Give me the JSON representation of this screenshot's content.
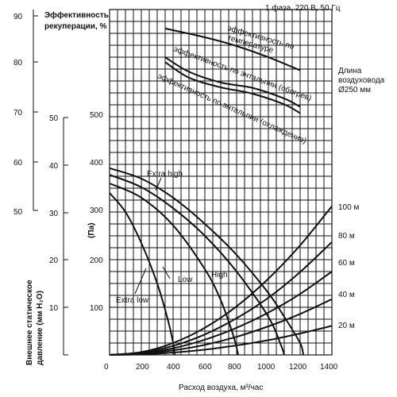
{
  "header": {
    "power_label": "1 фаза, 220 В, 50 Гц",
    "eff_axis_line1": "Эффективность",
    "eff_axis_line2": "рекуперации, %",
    "duct_line1": "Длина",
    "duct_line2": "воздуховода",
    "duct_line3": "Ø250 мм"
  },
  "axes": {
    "efficiency_ticks": [
      "90",
      "80",
      "70",
      "60",
      "50"
    ],
    "mmh2o_ticks": [
      "50",
      "40",
      "30",
      "20",
      "10"
    ],
    "pa_ticks": [
      "500",
      "400",
      "300",
      "200",
      "100"
    ],
    "pa_unit": "(Па)",
    "x_ticks": [
      "0",
      "200",
      "400",
      "600",
      "800",
      "1000",
      "1200",
      "1400"
    ],
    "xlabel": "Расход воздуха, м³/час",
    "ylabel_line1": "Внешнее статическое",
    "ylabel_line2": "давление (мм H₂O)"
  },
  "labels": {
    "eff_temp_line1": "эффективность по",
    "eff_temp_line2": "температуре",
    "eff_heat": "эффективность по энтальпии (обогрев)",
    "eff_cool": "эффективность по энтальпии (охлаждение)",
    "extra_high": "Extra high",
    "high": "High",
    "low": "Low",
    "extra_low": "Extra low",
    "duct_100": "100 м",
    "duct_80": "80 м",
    "duct_60": "60 м",
    "duct_40": "40 м",
    "duct_20": "20 м"
  },
  "chart_data": {
    "type": "line",
    "xlabel": "Расход воздуха, м³/час",
    "ylabel": "Внешнее статическое давление (Па)",
    "xlim": [
      0,
      1400
    ],
    "ylim": [
      0,
      500
    ],
    "efficiency_ylim": [
      50,
      90
    ],
    "fan_curves": [
      {
        "name": "Extra high",
        "x": [
          0,
          200,
          400,
          600,
          800,
          1000,
          1100,
          1200,
          1220
        ],
        "y": [
          392,
          370,
          330,
          275,
          210,
          130,
          80,
          25,
          0
        ]
      },
      {
        "name": "High",
        "x": [
          0,
          200,
          400,
          600,
          800,
          1000,
          1080,
          1100
        ],
        "y": [
          378,
          352,
          308,
          250,
          175,
          80,
          20,
          0
        ]
      },
      {
        "name": "Low",
        "x": [
          0,
          200,
          400,
          600,
          700,
          780,
          810
        ],
        "y": [
          360,
          330,
          272,
          180,
          115,
          40,
          0
        ]
      },
      {
        "name": "Extra low",
        "x": [
          0,
          100,
          200,
          300,
          370,
          400,
          410
        ],
        "y": [
          340,
          300,
          235,
          150,
          70,
          25,
          0
        ]
      }
    ],
    "duct_resistance_curves": [
      {
        "name": "100 м",
        "x": [
          0,
          200,
          400,
          600,
          800,
          1000,
          1200,
          1400
        ],
        "y": [
          0,
          6,
          25,
          57,
          102,
          160,
          230,
          312
        ]
      },
      {
        "name": "80 м",
        "x": [
          0,
          200,
          400,
          600,
          800,
          1000,
          1200,
          1400
        ],
        "y": [
          0,
          5,
          19,
          43,
          77,
          120,
          174,
          237
        ]
      },
      {
        "name": "60 м",
        "x": [
          0,
          200,
          400,
          600,
          800,
          1000,
          1200,
          1400
        ],
        "y": [
          0,
          3.5,
          14,
          32,
          57,
          89,
          128,
          175
        ]
      },
      {
        "name": "40 м",
        "x": [
          0,
          200,
          400,
          600,
          800,
          1000,
          1200,
          1400
        ],
        "y": [
          0,
          2.4,
          9.5,
          21,
          38,
          60,
          86,
          117
        ]
      },
      {
        "name": "20 м",
        "x": [
          0,
          200,
          400,
          600,
          800,
          1000,
          1200,
          1400
        ],
        "y": [
          0,
          1.2,
          5,
          11,
          20,
          31,
          45,
          61
        ]
      }
    ],
    "efficiency_curves": [
      {
        "name": "эффективность по температуре",
        "x": [
          350,
          600,
          800,
          1000,
          1200
        ],
        "y": [
          87.4,
          85.6,
          83.8,
          81.5,
          78.8
        ]
      },
      {
        "name": "эффективность по энтальпии (обогрев)",
        "x": [
          350,
          500,
          700,
          900,
          1100,
          1200
        ],
        "y": [
          81.5,
          78.5,
          76.3,
          75.2,
          73.0,
          71.3
        ]
      },
      {
        "name": "эффективность по энтальпии (охлаждение)",
        "x": [
          350,
          500,
          700,
          900,
          1100,
          1200
        ],
        "y": [
          80.5,
          77.3,
          75.3,
          74.0,
          71.8,
          70.0
        ]
      }
    ],
    "grid": true
  }
}
